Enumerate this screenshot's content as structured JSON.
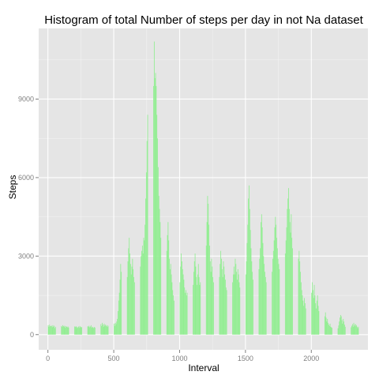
{
  "chart_data": {
    "type": "bar",
    "title": "Histogram of total Number of steps per day in not Na dataset",
    "xlabel": "Interval",
    "ylabel": "Steps",
    "xlim": [
      -70,
      2430
    ],
    "ylim": [
      -580,
      11700
    ],
    "x_ticks": [
      0,
      500,
      1000,
      1500,
      2000
    ],
    "y_ticks": [
      0,
      3000,
      6000,
      9000
    ],
    "x_tick_labels": [
      "0",
      "500",
      "1000",
      "1500",
      "2000"
    ],
    "y_tick_labels": [
      "0",
      "3000",
      "6000",
      "9000"
    ],
    "grid": true,
    "legend": "none",
    "colors": {
      "bars": "#90ee90",
      "panel": "#e5e5e5",
      "grid_major": "#ffffff",
      "grid_minor": "#f2f2f2"
    },
    "series": [
      {
        "x": [
          0,
          5,
          10,
          15,
          20,
          25,
          30,
          35,
          40,
          45,
          50,
          55,
          100,
          105,
          110,
          115,
          120,
          125,
          130,
          135,
          140,
          145,
          150,
          155,
          200,
          205,
          210,
          215,
          220,
          225,
          230,
          235,
          240,
          245,
          250,
          255,
          300,
          305,
          310,
          315,
          320,
          325,
          330,
          335,
          340,
          345,
          350,
          355,
          400,
          405,
          410,
          415,
          420,
          425,
          430,
          435,
          440,
          445,
          450,
          455,
          500,
          505,
          510,
          515,
          520,
          525,
          530,
          535,
          540,
          545,
          550,
          555,
          600,
          605,
          610,
          615,
          620,
          625,
          630,
          635,
          640,
          645,
          650,
          655,
          700,
          705,
          710,
          715,
          720,
          725,
          730,
          735,
          740,
          745,
          750,
          755,
          800,
          805,
          810,
          815,
          820,
          825,
          830,
          835,
          840,
          845,
          850,
          855,
          900,
          905,
          910,
          915,
          920,
          925,
          930,
          935,
          940,
          945,
          950,
          955,
          1000,
          1005,
          1010,
          1015,
          1020,
          1025,
          1030,
          1035,
          1040,
          1045,
          1050,
          1055,
          1100,
          1105,
          1110,
          1115,
          1120,
          1125,
          1130,
          1135,
          1140,
          1145,
          1150,
          1155,
          1200,
          1205,
          1210,
          1215,
          1220,
          1225,
          1230,
          1235,
          1240,
          1245,
          1250,
          1255,
          1300,
          1305,
          1310,
          1315,
          1320,
          1325,
          1330,
          1335,
          1340,
          1345,
          1350,
          1355,
          1400,
          1405,
          1410,
          1415,
          1420,
          1425,
          1430,
          1435,
          1440,
          1445,
          1450,
          1455,
          1500,
          1505,
          1510,
          1515,
          1520,
          1525,
          1530,
          1535,
          1540,
          1545,
          1550,
          1555,
          1600,
          1605,
          1610,
          1615,
          1620,
          1625,
          1630,
          1635,
          1640,
          1645,
          1650,
          1655,
          1700,
          1705,
          1710,
          1715,
          1720,
          1725,
          1730,
          1735,
          1740,
          1745,
          1750,
          1755,
          1800,
          1805,
          1810,
          1815,
          1820,
          1825,
          1830,
          1835,
          1840,
          1845,
          1850,
          1855,
          1900,
          1905,
          1910,
          1915,
          1920,
          1925,
          1930,
          1935,
          1940,
          1945,
          1950,
          1955,
          2000,
          2005,
          2010,
          2015,
          2020,
          2025,
          2030,
          2035,
          2040,
          2045,
          2050,
          2055,
          2100,
          2105,
          2110,
          2115,
          2120,
          2125,
          2130,
          2135,
          2140,
          2145,
          2150,
          2155,
          2200,
          2205,
          2210,
          2215,
          2220,
          2225,
          2230,
          2235,
          2240,
          2245,
          2250,
          2255,
          2300,
          2305,
          2310,
          2315,
          2320,
          2325,
          2330,
          2335,
          2340,
          2345,
          2350,
          2355
        ],
        "values": [
          360,
          300,
          380,
          320,
          330,
          340,
          280,
          360,
          300,
          340,
          250,
          300,
          330,
          300,
          360,
          330,
          300,
          340,
          260,
          320,
          300,
          280,
          310,
          270,
          310,
          290,
          320,
          300,
          250,
          280,
          310,
          260,
          330,
          300,
          270,
          290,
          320,
          300,
          340,
          280,
          310,
          360,
          260,
          300,
          280,
          250,
          290,
          270,
          400,
          330,
          450,
          380,
          300,
          420,
          350,
          380,
          320,
          360,
          300,
          340,
          420,
          330,
          450,
          400,
          500,
          600,
          900,
          1300,
          1600,
          2100,
          2700,
          2400,
          2200,
          2800,
          3300,
          3700,
          3100,
          2700,
          2300,
          2600,
          2900,
          2500,
          2200,
          2000,
          2600,
          3000,
          3200,
          3400,
          3100,
          3700,
          3600,
          4200,
          5200,
          6200,
          7400,
          8400,
          9500,
          11200,
          9800,
          10000,
          9500,
          8400,
          7500,
          6400,
          5300,
          4800,
          4300,
          3700,
          3200,
          3800,
          4300,
          3600,
          2900,
          2500,
          2700,
          2300,
          2000,
          1700,
          1500,
          1300,
          2000,
          2600,
          3100,
          2800,
          2500,
          2300,
          2100,
          1800,
          1600,
          1700,
          1500,
          1600,
          1900,
          2400,
          2800,
          3100,
          2600,
          2200,
          1900,
          2300,
          2700,
          2200,
          1900,
          2000,
          3400,
          4300,
          5300,
          5000,
          4200,
          3400,
          2800,
          2400,
          2900,
          2600,
          2200,
          2000,
          2200,
          2700,
          3200,
          2900,
          2500,
          2200,
          2800,
          2600,
          2300,
          2100,
          1800,
          1700,
          2000,
          2300,
          2600,
          2300,
          2900,
          2700,
          2400,
          2100,
          2500,
          2300,
          2000,
          1800,
          2300,
          2800,
          3500,
          4200,
          5200,
          5700,
          4800,
          4000,
          3300,
          2800,
          2400,
          2100,
          2500,
          2900,
          3300,
          4300,
          4600,
          4100,
          3500,
          3000,
          2700,
          2400,
          2200,
          2000,
          2400,
          2900,
          3200,
          3600,
          4100,
          4500,
          4200,
          3700,
          3300,
          2900,
          2700,
          2500,
          3100,
          3600,
          4100,
          4800,
          5200,
          5600,
          4800,
          4300,
          3900,
          4600,
          3700,
          3300,
          2900,
          3200,
          2800,
          2400,
          2000,
          1700,
          1500,
          1300,
          1100,
          1400,
          1200,
          1000,
          1600,
          2000,
          1700,
          1400,
          1900,
          1500,
          1200,
          1000,
          1300,
          1500,
          1100,
          900,
          700,
          850,
          650,
          500,
          600,
          450,
          380,
          330,
          420,
          300,
          280,
          260,
          240,
          350,
          500,
          650,
          750,
          700,
          550,
          420,
          600,
          500,
          380,
          300,
          280,
          340,
          400,
          300,
          450,
          380,
          320,
          400,
          350,
          300,
          250,
          300
        ]
      }
    ]
  }
}
